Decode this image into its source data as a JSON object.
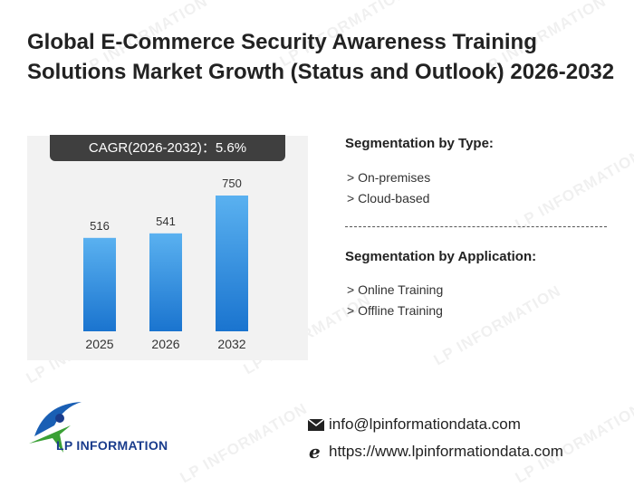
{
  "title": "Global E-Commerce Security Awareness Training Solutions Market Growth (Status and Outlook) 2026-2032",
  "cagr_label": "CAGR(2026-2032)：5.6%",
  "watermark_text": "LP INFORMATION",
  "chart_data": {
    "type": "bar",
    "categories": [
      "2025",
      "2026",
      "2032"
    ],
    "values": [
      516,
      541,
      750
    ],
    "title": "",
    "xlabel": "",
    "ylabel": "",
    "ylim": [
      0,
      900
    ],
    "grid": false,
    "bar_color_top": "#5ab1f0",
    "bar_color_bottom": "#1a74cf"
  },
  "segmentation": {
    "type_heading": "Segmentation by Type:",
    "type_items": [
      "> On-premises",
      "> Cloud-based"
    ],
    "application_heading": "Segmentation by Application:",
    "application_items": [
      "> Online Training",
      "> Offline Training"
    ]
  },
  "logo": {
    "text": "LP INFORMATION",
    "icon": "lp-information-logo-icon"
  },
  "contact": {
    "email": "info@lpinformationdata.com",
    "email_icon": "envelope-icon",
    "website": "https://www.lpinformationdata.com",
    "website_icon": "browser-e-icon"
  },
  "colors": {
    "banner_bg": "#3f3f3f",
    "panel_bg": "#f2f2f2",
    "logo_blue": "#1a3c8c",
    "logo_green": "#3aa035"
  }
}
